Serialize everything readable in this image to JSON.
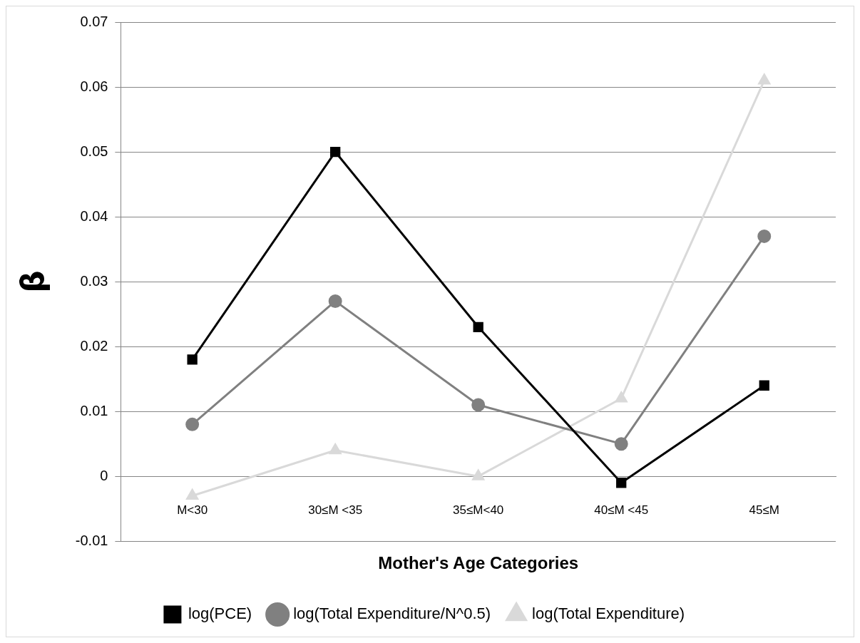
{
  "chart_data": {
    "type": "line",
    "xlabel": "Mother's Age Categories",
    "ylabel": "β",
    "categories": [
      "M<30",
      "30≤M <35",
      "35≤M<40",
      "40≤M <45",
      "45≤M"
    ],
    "series": [
      {
        "name": "log(PCE)",
        "color": "#000000",
        "marker": "square",
        "values": [
          0.018,
          0.05,
          0.023,
          -0.001,
          0.014
        ]
      },
      {
        "name": "log(Total Expenditure/N^0.5)",
        "color": "#808080",
        "marker": "circle",
        "values": [
          0.008,
          0.027,
          0.011,
          0.005,
          0.037
        ]
      },
      {
        "name": "log(Total Expenditure)",
        "color": "#d9d9d9",
        "marker": "triangle",
        "values": [
          -0.003,
          0.004,
          0.0,
          0.012,
          0.061
        ]
      }
    ],
    "ylim": [
      -0.01,
      0.07
    ],
    "yticks": [
      -0.01,
      0,
      0.01,
      0.02,
      0.03,
      0.04,
      0.05,
      0.06,
      0.07
    ],
    "grid": "y",
    "legend": "bottom",
    "line_style": "solid"
  }
}
